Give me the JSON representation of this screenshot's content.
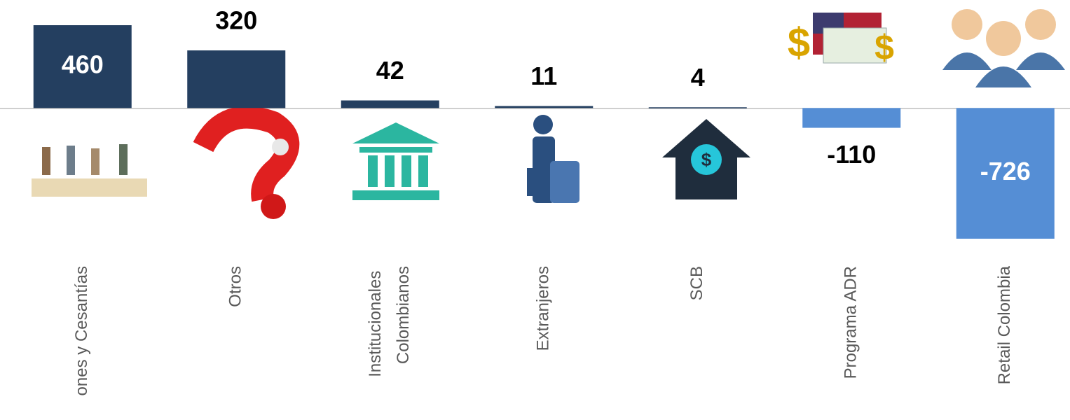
{
  "chart_data": {
    "type": "bar",
    "categories": [
      "ones y Cesantías",
      "Otros",
      "Institucionales Colombianos",
      "Extranjeros",
      "SCB",
      "Programa ADR",
      "Retail Colombia"
    ],
    "values": [
      460,
      320,
      42,
      11,
      4,
      -110,
      -726
    ],
    "positive_color": "#243f60",
    "negative_color": "#558ed5",
    "ylim": [
      -726,
      460
    ]
  }
}
